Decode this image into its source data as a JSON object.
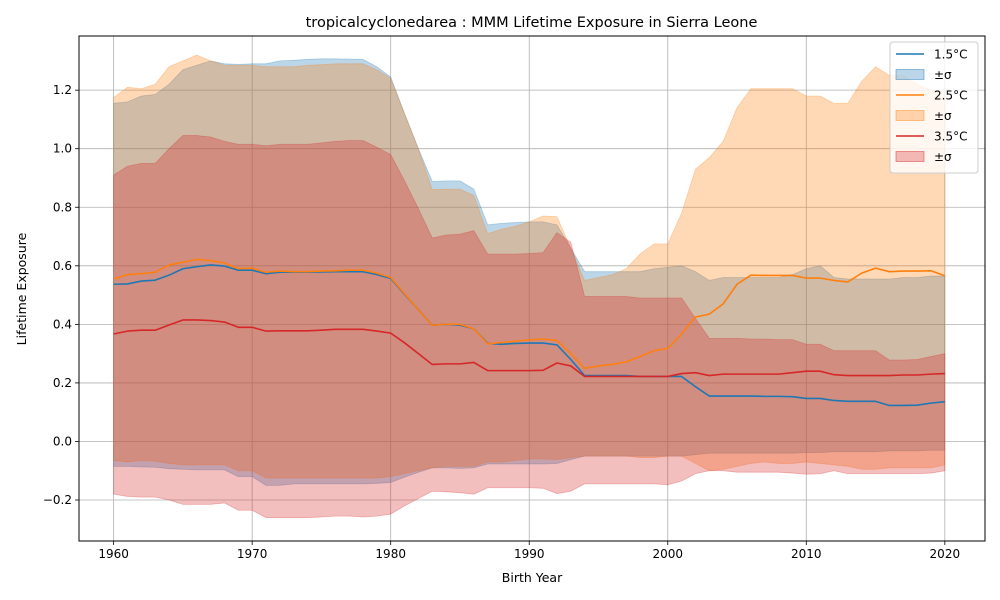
{
  "chart_data": {
    "type": "area",
    "title": "tropicalcyclonedarea : MMM Lifetime Exposure in Sierra Leone",
    "xlabel": "Birth Year",
    "ylabel": "Lifetime Exposure",
    "xlim": [
      1957.5,
      2022.9
    ],
    "ylim": [
      -0.34,
      1.385
    ],
    "xticks": [
      1960,
      1970,
      1980,
      1990,
      2000,
      2010,
      2020
    ],
    "xtick_labels": [
      "1960",
      "1970",
      "1980",
      "1990",
      "2000",
      "2010",
      "2020"
    ],
    "yticks": [
      -0.2,
      0.0,
      0.2,
      0.4,
      0.6,
      0.8,
      1.0,
      1.2
    ],
    "ytick_labels": [
      "−0.2",
      "0.0",
      "0.2",
      "0.4",
      "0.6",
      "0.8",
      "1.0",
      "1.2"
    ],
    "grid": true,
    "legend_position": "top-right",
    "x": [
      1960,
      1961,
      1962,
      1963,
      1964,
      1965,
      1966,
      1967,
      1968,
      1969,
      1970,
      1971,
      1972,
      1973,
      1974,
      1975,
      1976,
      1977,
      1978,
      1979,
      1980,
      1981,
      1982,
      1983,
      1984,
      1985,
      1986,
      1987,
      1988,
      1989,
      1990,
      1991,
      1992,
      1993,
      1994,
      1995,
      1996,
      1997,
      1998,
      1999,
      2000,
      2001,
      2002,
      2003,
      2004,
      2005,
      2006,
      2007,
      2008,
      2009,
      2010,
      2011,
      2012,
      2013,
      2014,
      2015,
      2016,
      2017,
      2018,
      2019,
      2020
    ],
    "series": [
      {
        "name": "1.5°C",
        "band_label": "±σ",
        "color": "#1f77b4",
        "mean": [
          0.537,
          0.538,
          0.548,
          0.551,
          0.568,
          0.59,
          0.597,
          0.603,
          0.599,
          0.585,
          0.585,
          0.573,
          0.578,
          0.578,
          0.578,
          0.579,
          0.58,
          0.58,
          0.58,
          0.57,
          0.557,
          0.503,
          0.45,
          0.397,
          0.4,
          0.397,
          0.385,
          0.335,
          0.332,
          0.335,
          0.336,
          0.336,
          0.33,
          0.28,
          0.225,
          0.225,
          0.225,
          0.225,
          0.222,
          0.222,
          0.222,
          0.222,
          0.187,
          0.155,
          0.155,
          0.155,
          0.155,
          0.154,
          0.154,
          0.153,
          0.147,
          0.147,
          0.14,
          0.137,
          0.137,
          0.137,
          0.123,
          0.123,
          0.124,
          0.131,
          0.136
        ],
        "upper": [
          1.155,
          1.16,
          1.18,
          1.185,
          1.22,
          1.27,
          1.285,
          1.3,
          1.29,
          1.288,
          1.29,
          1.29,
          1.3,
          1.302,
          1.305,
          1.307,
          1.307,
          1.306,
          1.305,
          1.28,
          1.245,
          1.12,
          1.0,
          0.888,
          0.89,
          0.89,
          0.862,
          0.74,
          0.745,
          0.748,
          0.75,
          0.75,
          0.74,
          0.66,
          0.58,
          0.58,
          0.58,
          0.58,
          0.58,
          0.59,
          0.595,
          0.6,
          0.58,
          0.55,
          0.56,
          0.56,
          0.56,
          0.56,
          0.56,
          0.57,
          0.59,
          0.6,
          0.56,
          0.555,
          0.555,
          0.555,
          0.555,
          0.56,
          0.56,
          0.565,
          0.565
        ],
        "lower": [
          -0.085,
          -0.085,
          -0.087,
          -0.088,
          -0.093,
          -0.095,
          -0.097,
          -0.097,
          -0.097,
          -0.12,
          -0.12,
          -0.15,
          -0.15,
          -0.145,
          -0.145,
          -0.145,
          -0.145,
          -0.145,
          -0.145,
          -0.143,
          -0.14,
          -0.122,
          -0.105,
          -0.09,
          -0.09,
          -0.092,
          -0.09,
          -0.077,
          -0.077,
          -0.077,
          -0.077,
          -0.077,
          -0.075,
          -0.062,
          -0.05,
          -0.05,
          -0.05,
          -0.05,
          -0.05,
          -0.05,
          -0.05,
          -0.05,
          -0.045,
          -0.04,
          -0.04,
          -0.04,
          -0.04,
          -0.04,
          -0.04,
          -0.04,
          -0.038,
          -0.038,
          -0.035,
          -0.035,
          -0.035,
          -0.035,
          -0.032,
          -0.032,
          -0.032,
          -0.03,
          -0.03
        ]
      },
      {
        "name": "2.5°C",
        "band_label": "±σ",
        "color": "#ff7f0e",
        "mean": [
          0.555,
          0.57,
          0.573,
          0.578,
          0.603,
          0.612,
          0.622,
          0.618,
          0.61,
          0.59,
          0.592,
          0.578,
          0.582,
          0.58,
          0.58,
          0.582,
          0.583,
          0.585,
          0.585,
          0.575,
          0.56,
          0.505,
          0.45,
          0.397,
          0.4,
          0.4,
          0.385,
          0.333,
          0.338,
          0.342,
          0.347,
          0.35,
          0.345,
          0.3,
          0.25,
          0.258,
          0.263,
          0.272,
          0.29,
          0.31,
          0.318,
          0.367,
          0.425,
          0.435,
          0.47,
          0.537,
          0.568,
          0.567,
          0.567,
          0.567,
          0.558,
          0.558,
          0.55,
          0.545,
          0.575,
          0.592,
          0.58,
          0.582,
          0.582,
          0.583,
          0.566
        ],
        "upper": [
          1.175,
          1.21,
          1.205,
          1.22,
          1.28,
          1.3,
          1.32,
          1.3,
          1.285,
          1.285,
          1.285,
          1.28,
          1.28,
          1.28,
          1.285,
          1.287,
          1.29,
          1.29,
          1.29,
          1.27,
          1.24,
          1.12,
          1.0,
          0.86,
          0.862,
          0.862,
          0.84,
          0.71,
          0.725,
          0.735,
          0.75,
          0.77,
          0.768,
          0.66,
          0.55,
          0.56,
          0.57,
          0.59,
          0.64,
          0.675,
          0.675,
          0.78,
          0.93,
          0.97,
          1.025,
          1.14,
          1.205,
          1.205,
          1.205,
          1.205,
          1.18,
          1.18,
          1.155,
          1.155,
          1.23,
          1.28,
          1.25,
          1.25,
          1.22,
          1.2,
          1.195
        ],
        "lower": [
          -0.065,
          -0.07,
          -0.065,
          -0.067,
          -0.075,
          -0.08,
          -0.08,
          -0.08,
          -0.08,
          -0.1,
          -0.1,
          -0.125,
          -0.125,
          -0.125,
          -0.125,
          -0.125,
          -0.125,
          -0.125,
          -0.125,
          -0.125,
          -0.12,
          -0.11,
          -0.1,
          -0.09,
          -0.085,
          -0.085,
          -0.085,
          -0.07,
          -0.07,
          -0.065,
          -0.06,
          -0.06,
          -0.062,
          -0.055,
          -0.05,
          -0.05,
          -0.05,
          -0.05,
          -0.055,
          -0.055,
          -0.05,
          -0.05,
          -0.075,
          -0.1,
          -0.095,
          -0.085,
          -0.075,
          -0.07,
          -0.075,
          -0.075,
          -0.07,
          -0.075,
          -0.08,
          -0.085,
          -0.095,
          -0.095,
          -0.09,
          -0.09,
          -0.09,
          -0.09,
          -0.08
        ]
      },
      {
        "name": "3.5°C",
        "band_label": "±σ",
        "color": "#d62728",
        "mean": [
          0.367,
          0.377,
          0.38,
          0.38,
          0.398,
          0.415,
          0.415,
          0.413,
          0.408,
          0.39,
          0.39,
          0.377,
          0.378,
          0.378,
          0.378,
          0.38,
          0.383,
          0.383,
          0.383,
          0.377,
          0.37,
          0.337,
          0.3,
          0.263,
          0.265,
          0.265,
          0.27,
          0.242,
          0.242,
          0.242,
          0.242,
          0.243,
          0.268,
          0.258,
          0.222,
          0.222,
          0.222,
          0.222,
          0.222,
          0.222,
          0.222,
          0.232,
          0.235,
          0.225,
          0.23,
          0.23,
          0.23,
          0.23,
          0.23,
          0.235,
          0.24,
          0.24,
          0.228,
          0.225,
          0.225,
          0.225,
          0.225,
          0.227,
          0.227,
          0.23,
          0.232
        ],
        "upper": [
          0.91,
          0.94,
          0.95,
          0.95,
          1.0,
          1.045,
          1.045,
          1.04,
          1.025,
          1.015,
          1.015,
          1.01,
          1.015,
          1.015,
          1.015,
          1.02,
          1.025,
          1.028,
          1.028,
          1.005,
          0.98,
          0.89,
          0.795,
          0.695,
          0.705,
          0.708,
          0.72,
          0.64,
          0.64,
          0.64,
          0.642,
          0.645,
          0.713,
          0.68,
          0.495,
          0.495,
          0.495,
          0.495,
          0.49,
          0.49,
          0.49,
          0.49,
          0.42,
          0.352,
          0.352,
          0.352,
          0.35,
          0.35,
          0.348,
          0.348,
          0.332,
          0.332,
          0.31,
          0.31,
          0.31,
          0.31,
          0.278,
          0.278,
          0.28,
          0.29,
          0.3
        ],
        "lower": [
          -0.18,
          -0.188,
          -0.19,
          -0.19,
          -0.2,
          -0.215,
          -0.215,
          -0.215,
          -0.21,
          -0.235,
          -0.235,
          -0.26,
          -0.26,
          -0.26,
          -0.26,
          -0.258,
          -0.255,
          -0.255,
          -0.258,
          -0.255,
          -0.248,
          -0.22,
          -0.195,
          -0.17,
          -0.172,
          -0.175,
          -0.18,
          -0.158,
          -0.158,
          -0.158,
          -0.158,
          -0.16,
          -0.178,
          -0.17,
          -0.145,
          -0.145,
          -0.145,
          -0.145,
          -0.145,
          -0.145,
          -0.148,
          -0.135,
          -0.11,
          -0.1,
          -0.1,
          -0.105,
          -0.105,
          -0.105,
          -0.105,
          -0.108,
          -0.112,
          -0.11,
          -0.1,
          -0.11,
          -0.11,
          -0.11,
          -0.11,
          -0.11,
          -0.11,
          -0.108,
          -0.1
        ]
      }
    ]
  }
}
